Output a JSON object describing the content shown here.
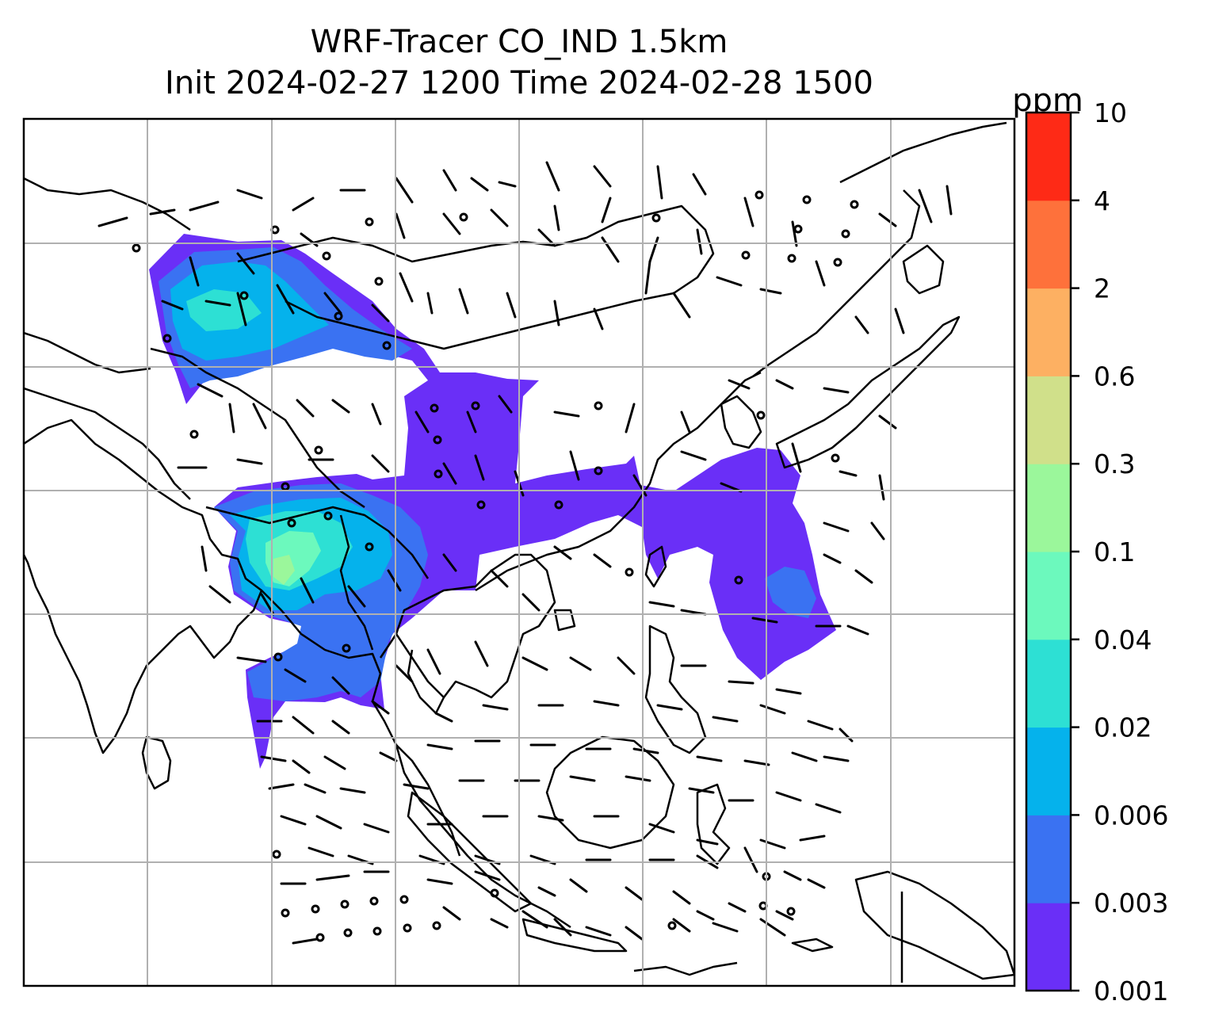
{
  "title": {
    "line1": "WRF-Tracer CO_IND 1.5km",
    "line2": "Init 2024-02-27 1200 Time 2024-02-28 1500"
  },
  "colorbar": {
    "unit": "ppm",
    "levels": [
      "0.001",
      "0.003",
      "0.006",
      "0.02",
      "0.04",
      "0.1",
      "0.3",
      "0.6",
      "2",
      "4",
      "10"
    ],
    "colors": [
      "#6a2ff7",
      "#3a72f2",
      "#05b2ec",
      "#2de0d4",
      "#6cf9bd",
      "#9bf79b",
      "#d0e08a",
      "#fdb062",
      "#fe713b",
      "#fe2a16"
    ]
  },
  "map": {
    "gridline_color": "#b0b0b0",
    "coastline_color": "#000000",
    "plume_colors": {
      "low": "#6a2ff7",
      "mid": "#3a72f2",
      "high": "#05b2ec",
      "peak": "#6cf9bd"
    }
  }
}
